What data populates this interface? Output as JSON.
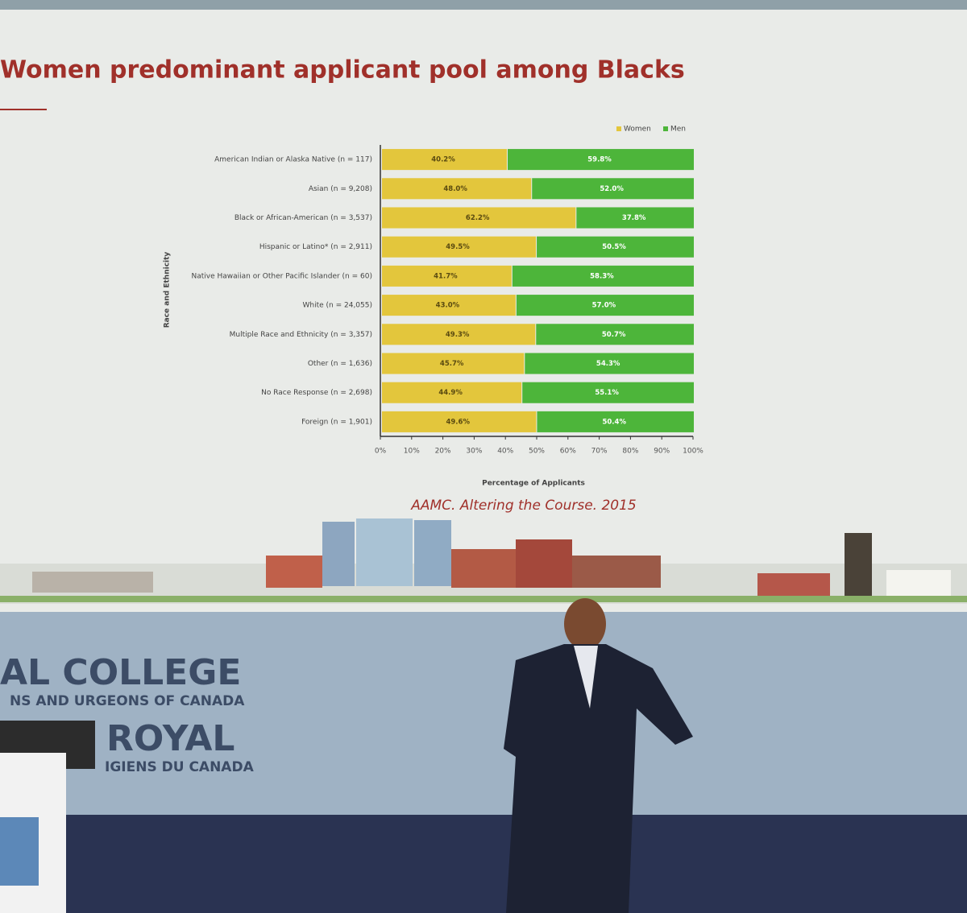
{
  "chart_data": {
    "type": "stacked-bar-horizontal",
    "title": "Women predominant applicant pool among Blacks",
    "xlabel": "Percentage of Applicants",
    "ylabel": "Race and Ethnicity",
    "source": "AAMC. Altering the Course. 2015",
    "categories": [
      "American Indian or Alaska Native (n = 117)",
      "Asian (n = 9,208)",
      "Black or African-American (n = 3,537)",
      "Hispanic or Latino* (n = 2,911)",
      "Native Hawaiian or Other Pacific Islander (n = 60)",
      "White (n = 24,055)",
      "Multiple Race and Ethnicity (n = 3,357)",
      "Other (n = 1,636)",
      "No Race Response (n = 2,698)",
      "Foreign (n = 1,901)"
    ],
    "series": [
      {
        "name": "Women",
        "color": "#e3c63c",
        "values": [
          40.2,
          48.0,
          62.2,
          49.5,
          41.7,
          43.0,
          49.3,
          45.7,
          44.9,
          49.6
        ],
        "value_labels": [
          "40.2%",
          "48.0%",
          "62.2%",
          "49.5%",
          "41.7%",
          "43.0%",
          "49.3%",
          "45.7%",
          "44.9%",
          "49.6%"
        ]
      },
      {
        "name": "Men",
        "color": "#4db53a",
        "values": [
          59.8,
          52.0,
          37.8,
          50.5,
          58.3,
          57.0,
          50.7,
          54.3,
          55.1,
          50.4
        ],
        "value_labels": [
          "59.8%",
          "52.0%",
          "37.8%",
          "50.5%",
          "58.3%",
          "57.0%",
          "50.7%",
          "54.3%",
          "55.1%",
          "50.4%"
        ]
      }
    ],
    "xlim": [
      0,
      100
    ],
    "xticks": [
      {
        "value": 0,
        "label": "0%"
      },
      {
        "value": 10,
        "label": "10%"
      },
      {
        "value": 20,
        "label": "20%"
      },
      {
        "value": 30,
        "label": "30%"
      },
      {
        "value": 40,
        "label": "40%"
      },
      {
        "value": 50,
        "label": "50%"
      },
      {
        "value": 60,
        "label": "60%"
      },
      {
        "value": 70,
        "label": "70%"
      },
      {
        "value": 80,
        "label": "80%"
      },
      {
        "value": 90,
        "label": "90%"
      },
      {
        "value": 100,
        "label": "100%"
      }
    ],
    "legend": "top-right"
  },
  "backdrop_text": [
    "AL COLLEGE",
    "NS AND URGEONS OF CANADA",
    "ROYAL",
    "IGIENS DU CANADA"
  ]
}
